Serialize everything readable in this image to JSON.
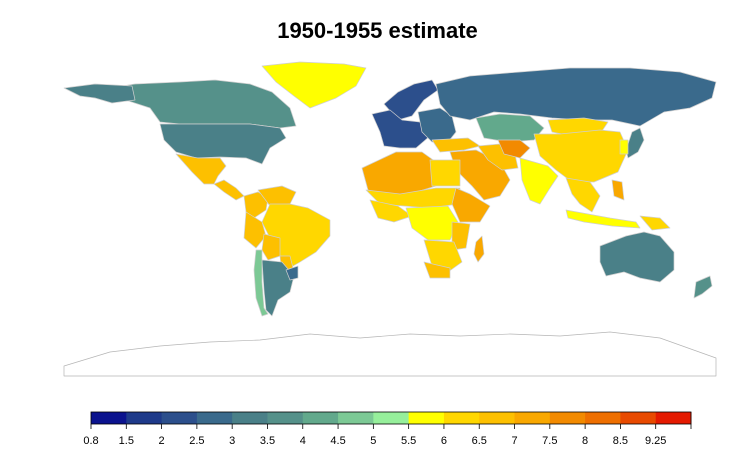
{
  "title": "1950-1955 estimate",
  "colors": {
    "background": "#ffffff",
    "country_border": "#cfcfcf",
    "antarctica_fill": "#ffffff",
    "antarctica_border": "#b5b5b5",
    "no_data": "#ffffff"
  },
  "legend": {
    "scale_min": 0.8,
    "scale_max": 9.25,
    "breaks": [
      0.8,
      1.5,
      2,
      2.5,
      3,
      3.5,
      4,
      4.5,
      5,
      5.5,
      6,
      6.5,
      7,
      7.5,
      8,
      8.5,
      9.25
    ],
    "labels": [
      "0.8",
      "1.5",
      "2",
      "2.5",
      "3",
      "3.5",
      "4",
      "4.5",
      "5",
      "5.5",
      "6",
      "6.5",
      "7",
      "7.5",
      "8",
      "8.5",
      "9.25"
    ],
    "colors": [
      "#0b138e",
      "#1e3a8a",
      "#2c4f8c",
      "#3a6a8c",
      "#4a8088",
      "#55918a",
      "#62a98c",
      "#7cc995",
      "#96ef9b",
      "#ffff00",
      "#ffd700",
      "#fdc000",
      "#f9a800",
      "#f28a00",
      "#ee6f00",
      "#e84a00",
      "#e41a00"
    ]
  },
  "regions": [
    {
      "name": "Canada",
      "value": 3.7
    },
    {
      "name": "Alaska",
      "value": 3.4
    },
    {
      "name": "United States",
      "value": 3.4
    },
    {
      "name": "Greenland",
      "value": 5.6
    },
    {
      "name": "Mexico",
      "value": 6.8
    },
    {
      "name": "Central America",
      "value": 6.7
    },
    {
      "name": "Colombia",
      "value": 6.6
    },
    {
      "name": "Venezuela",
      "value": 6.5
    },
    {
      "name": "Brazil",
      "value": 6.2
    },
    {
      "name": "Peru",
      "value": 6.7
    },
    {
      "name": "Bolivia",
      "value": 6.6
    },
    {
      "name": "Paraguay",
      "value": 6.5
    },
    {
      "name": "Argentina",
      "value": 3.2
    },
    {
      "name": "Chile",
      "value": 4.8
    },
    {
      "name": "Uruguay",
      "value": 2.7
    },
    {
      "name": "Scandinavia",
      "value": 2.3
    },
    {
      "name": "Western Europe",
      "value": 2.4
    },
    {
      "name": "Eastern Europe",
      "value": 2.9
    },
    {
      "name": "USSR",
      "value": 2.8
    },
    {
      "name": "Kazakhstan",
      "value": 4.4
    },
    {
      "name": "Mongolia",
      "value": 6.0
    },
    {
      "name": "China",
      "value": 6.1
    },
    {
      "name": "Japan",
      "value": 3.0
    },
    {
      "name": "Korea",
      "value": 5.6
    },
    {
      "name": "Turkey",
      "value": 6.9
    },
    {
      "name": "Middle East",
      "value": 7.0
    },
    {
      "name": "Iran",
      "value": 6.9
    },
    {
      "name": "Afghanistan",
      "value": 7.7
    },
    {
      "name": "India",
      "value": 5.9
    },
    {
      "name": "Southeast Asia",
      "value": 6.0
    },
    {
      "name": "Indonesia",
      "value": 5.5
    },
    {
      "name": "Philippines",
      "value": 7.4
    },
    {
      "name": "Papua New Guinea",
      "value": 6.3
    },
    {
      "name": "Australia",
      "value": 3.2
    },
    {
      "name": "New Zealand",
      "value": 3.7
    },
    {
      "name": "North Africa",
      "value": 7.2
    },
    {
      "name": "Egypt",
      "value": 6.4
    },
    {
      "name": "Sahel",
      "value": 6.3
    },
    {
      "name": "West Africa",
      "value": 6.0
    },
    {
      "name": "Horn of Africa",
      "value": 7.2
    },
    {
      "name": "Central Africa",
      "value": 5.8
    },
    {
      "name": "East Africa",
      "value": 6.8
    },
    {
      "name": "Southern Africa",
      "value": 6.1
    },
    {
      "name": "South Africa",
      "value": 6.5
    },
    {
      "name": "Madagascar",
      "value": 7.3
    },
    {
      "name": "Antarctica",
      "value": null
    }
  ]
}
